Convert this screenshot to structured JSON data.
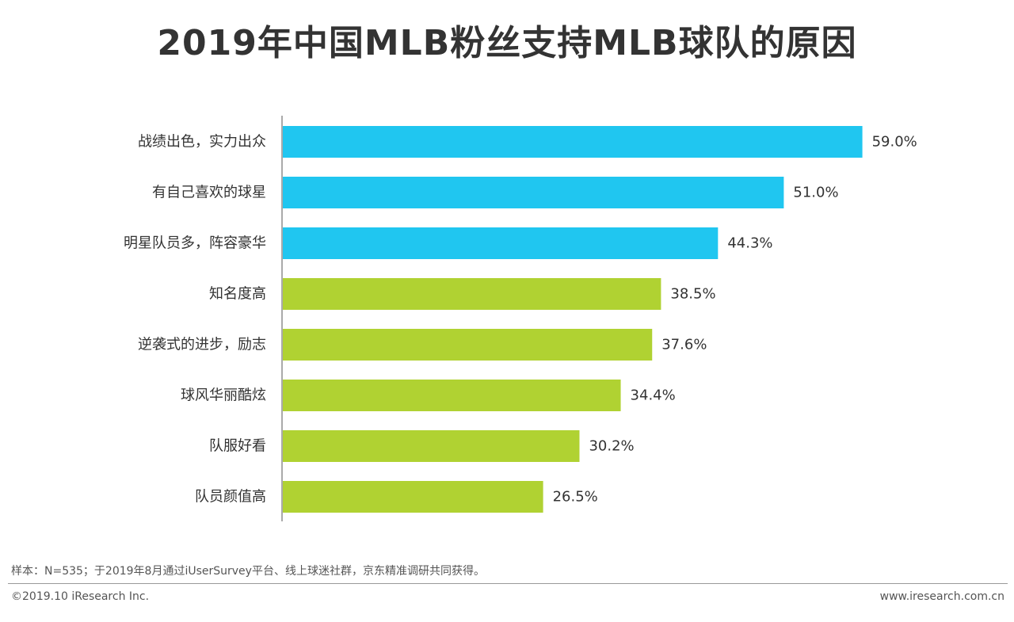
{
  "title": "2019年中国MLB粉丝支持MLB球队的原因",
  "chart_data": {
    "type": "bar",
    "orientation": "horizontal",
    "title": "2019年中国MLB粉丝支持MLB球队的原因",
    "xlabel": "",
    "ylabel": "",
    "xlim": [
      0,
      60
    ],
    "grid": false,
    "categories": [
      "战绩出色，实力出众",
      "有自己喜欢的球星",
      "明星队员多，阵容豪华",
      "知名度高",
      "逆袭式的进步，励志",
      "球风华丽酷炫",
      "队服好看",
      "队员颜值高"
    ],
    "values": [
      59.0,
      51.0,
      44.3,
      38.5,
      37.6,
      34.4,
      30.2,
      26.5
    ],
    "value_labels": [
      "59.0%",
      "51.0%",
      "44.3%",
      "38.5%",
      "37.6%",
      "34.4%",
      "30.2%",
      "26.5%"
    ],
    "bar_colors": [
      "#20c6f0",
      "#20c6f0",
      "#20c6f0",
      "#b0d232",
      "#b0d232",
      "#b0d232",
      "#b0d232",
      "#b0d232"
    ]
  },
  "footnote": "样本：N=535；于2019年8月通过iUserSurvey平台、线上球迷社群，京东精准调研共同获得。",
  "copyright": "©2019.10 iResearch Inc.",
  "website": "www.iresearch.com.cn"
}
